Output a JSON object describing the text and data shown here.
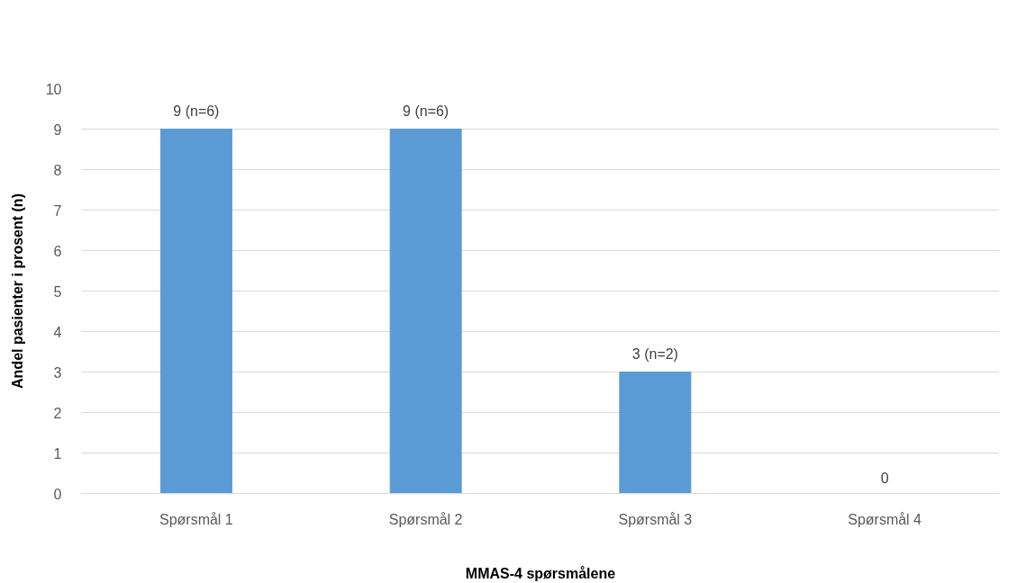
{
  "chart_data": {
    "type": "bar",
    "xlabel": "MMAS-4 spørsmålene",
    "ylabel": "Andel pasienter i prosent (n)",
    "categories": [
      "Spørsmål 1",
      "Spørsmål 2",
      "Spørsmål 3",
      "Spørsmål 4"
    ],
    "values": [
      9,
      9,
      3,
      0
    ],
    "value_labels": [
      "9 (n=6)",
      "9 (n=6)",
      "3 (n=2)",
      "0"
    ],
    "color": "#5b9bd5",
    "ylim": [
      0,
      10
    ],
    "yticks": [
      0,
      1,
      2,
      3,
      4,
      5,
      6,
      7,
      8,
      9,
      10
    ],
    "grid": "y"
  }
}
